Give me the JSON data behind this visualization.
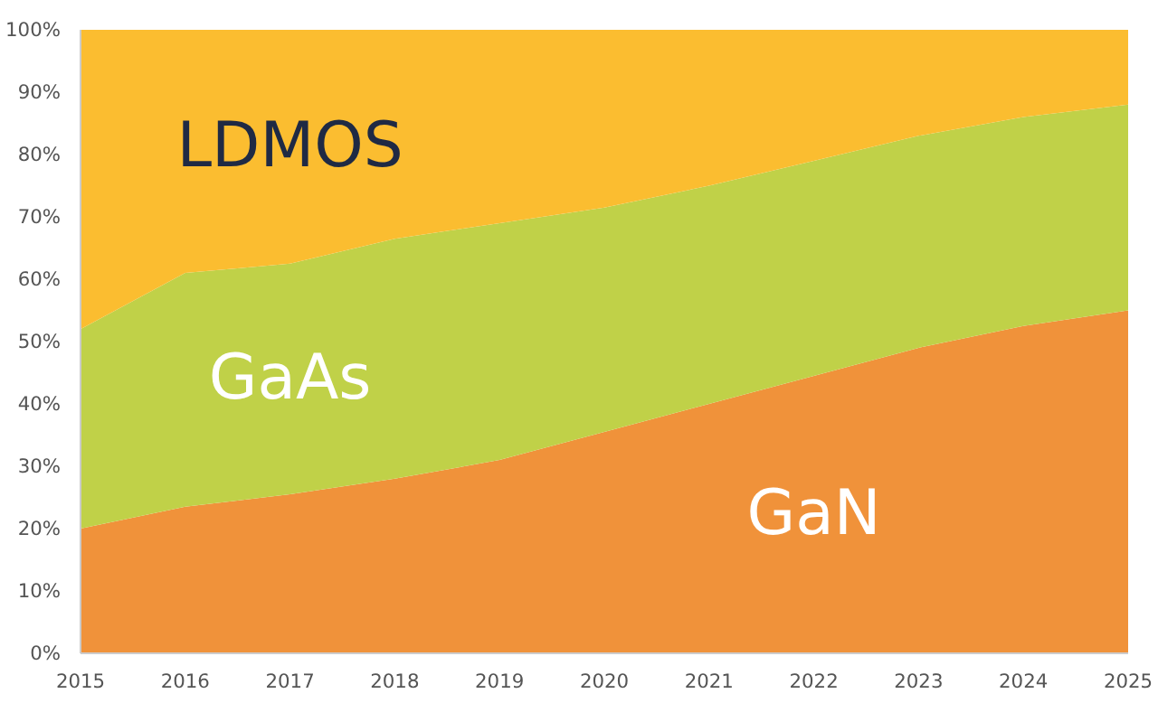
{
  "chart_data": {
    "type": "area",
    "stacked": true,
    "x": [
      2015,
      2016,
      2017,
      2018,
      2019,
      2020,
      2021,
      2022,
      2023,
      2024,
      2025
    ],
    "series": [
      {
        "name": "GaN",
        "color": "#f0923a",
        "values": [
          20,
          23.5,
          25.5,
          28,
          31,
          35.5,
          40,
          44.5,
          49,
          52.5,
          55
        ]
      },
      {
        "name": "GaAs",
        "color": "#c0d148",
        "values": [
          32,
          37.5,
          37,
          38.5,
          38,
          36,
          35,
          34.5,
          34,
          33.5,
          33
        ]
      },
      {
        "name": "LDMOS",
        "color": "#fbbd30",
        "values": [
          48,
          39,
          37.5,
          33.5,
          31,
          28.5,
          25,
          21,
          17,
          14,
          12
        ]
      }
    ],
    "xlim": [
      2015,
      2025
    ],
    "xticks": [
      2015,
      2016,
      2017,
      2018,
      2019,
      2020,
      2021,
      2022,
      2023,
      2024,
      2025
    ],
    "ylim": [
      0,
      100
    ],
    "yticks": [
      {
        "value": 0,
        "label": "0%"
      },
      {
        "value": 10,
        "label": "10%"
      },
      {
        "value": 20,
        "label": "20%"
      },
      {
        "value": 30,
        "label": "30%"
      },
      {
        "value": 40,
        "label": "40%"
      },
      {
        "value": 50,
        "label": "50%"
      },
      {
        "value": 60,
        "label": "60%"
      },
      {
        "value": 70,
        "label": "70%"
      },
      {
        "value": 80,
        "label": "80%"
      },
      {
        "value": 90,
        "label": "90%"
      },
      {
        "value": 100,
        "label": "100%"
      }
    ],
    "grid": false
  }
}
